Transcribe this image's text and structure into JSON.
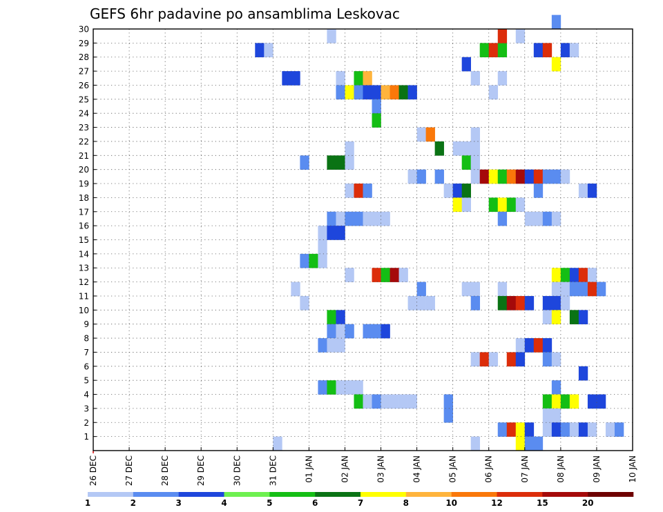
{
  "chart_data": {
    "type": "heatmap",
    "title": "GEFS 6hr padavine po ansamblima Leskovac",
    "xlabel": "",
    "ylabel": "",
    "x_ticks": [
      "26 DEC",
      "27 DEC",
      "28 DEC",
      "29 DEC",
      "30 DEC",
      "31 DEC",
      "01 JAN",
      "02 JAN",
      "03 JAN",
      "04 JAN",
      "05 JAN",
      "06 JAN",
      "07 JAN",
      "08 JAN",
      "09 JAN",
      "10 JAN"
    ],
    "y_ticks": [
      "1",
      "2",
      "3",
      "4",
      "5",
      "6",
      "7",
      "8",
      "9",
      "10",
      "11",
      "12",
      "13",
      "14",
      "15",
      "16",
      "17",
      "18",
      "19",
      "20",
      "21",
      "22",
      "23",
      "24",
      "25",
      "26",
      "27",
      "28",
      "29",
      "30"
    ],
    "xlim": [
      0,
      60
    ],
    "ylim": [
      0,
      30
    ],
    "grid": true,
    "legend": {
      "placement": "bottom",
      "levels": [
        "1",
        "2",
        "3",
        "4",
        "5",
        "6",
        "7",
        "8",
        "10",
        "12",
        "15",
        "20"
      ],
      "colors": [
        "#b4c8f5",
        "#5a8cf0",
        "#1e46dc",
        "#6ef050",
        "#14be14",
        "#0a7314",
        "#ffff00",
        "#ffb43c",
        "#fa780a",
        "#dc2d0a",
        "#a50a0a",
        "#6e0000"
      ]
    },
    "cells": [
      {
        "t": 18,
        "m": 28,
        "c": 3
      },
      {
        "t": 19,
        "m": 28,
        "c": 1
      },
      {
        "t": 21,
        "m": 26,
        "c": 3
      },
      {
        "t": 22,
        "m": 26,
        "c": 3
      },
      {
        "t": 26,
        "m": 29,
        "c": 1
      },
      {
        "t": 27,
        "m": 26,
        "c": 1
      },
      {
        "t": 41,
        "m": 27,
        "c": 3
      },
      {
        "t": 42,
        "m": 26,
        "c": 1
      },
      {
        "t": 43,
        "m": 28,
        "c": 5
      },
      {
        "t": 44,
        "m": 28,
        "c": 10
      },
      {
        "t": 45,
        "m": 28,
        "c": 5
      },
      {
        "t": 45,
        "m": 29,
        "c": 10
      },
      {
        "t": 47,
        "m": 29,
        "c": 1
      },
      {
        "t": 49,
        "m": 28,
        "c": 3
      },
      {
        "t": 50,
        "m": 28,
        "c": 10
      },
      {
        "t": 51,
        "m": 27,
        "c": 7
      },
      {
        "t": 52,
        "m": 28,
        "c": 3
      },
      {
        "t": 53,
        "m": 28,
        "c": 1
      },
      {
        "t": 51,
        "m": 30,
        "c": 2
      },
      {
        "t": 29,
        "m": 26,
        "c": 5
      },
      {
        "t": 30,
        "m": 26,
        "c": 8
      },
      {
        "t": 45,
        "m": 26,
        "c": 1
      },
      {
        "t": 27,
        "m": 25,
        "c": 2
      },
      {
        "t": 28,
        "m": 25,
        "c": 7
      },
      {
        "t": 29,
        "m": 25,
        "c": 2
      },
      {
        "t": 30,
        "m": 25,
        "c": 3
      },
      {
        "t": 31,
        "m": 25,
        "c": 3
      },
      {
        "t": 32,
        "m": 25,
        "c": 8
      },
      {
        "t": 33,
        "m": 25,
        "c": 9
      },
      {
        "t": 34,
        "m": 25,
        "c": 6
      },
      {
        "t": 35,
        "m": 25,
        "c": 3
      },
      {
        "t": 44,
        "m": 25,
        "c": 1
      },
      {
        "t": 31,
        "m": 24,
        "c": 2
      },
      {
        "t": 31,
        "m": 23,
        "c": 5
      },
      {
        "t": 36,
        "m": 22,
        "c": 1
      },
      {
        "t": 37,
        "m": 22,
        "c": 9
      },
      {
        "t": 42,
        "m": 22,
        "c": 1
      },
      {
        "t": 28,
        "m": 21,
        "c": 1
      },
      {
        "t": 38,
        "m": 21,
        "c": 6
      },
      {
        "t": 40,
        "m": 21,
        "c": 1
      },
      {
        "t": 41,
        "m": 21,
        "c": 1
      },
      {
        "t": 42,
        "m": 21,
        "c": 1
      },
      {
        "t": 23,
        "m": 20,
        "c": 2
      },
      {
        "t": 26,
        "m": 20,
        "c": 6
      },
      {
        "t": 27,
        "m": 20,
        "c": 6
      },
      {
        "t": 28,
        "m": 20,
        "c": 1
      },
      {
        "t": 41,
        "m": 20,
        "c": 5
      },
      {
        "t": 42,
        "m": 20,
        "c": 1
      },
      {
        "t": 35,
        "m": 19,
        "c": 1
      },
      {
        "t": 36,
        "m": 19,
        "c": 2
      },
      {
        "t": 38,
        "m": 19,
        "c": 2
      },
      {
        "t": 42,
        "m": 19,
        "c": 1
      },
      {
        "t": 43,
        "m": 19,
        "c": 11
      },
      {
        "t": 44,
        "m": 19,
        "c": 7
      },
      {
        "t": 45,
        "m": 19,
        "c": 5
      },
      {
        "t": 46,
        "m": 19,
        "c": 9
      },
      {
        "t": 47,
        "m": 19,
        "c": 11
      },
      {
        "t": 48,
        "m": 19,
        "c": 3
      },
      {
        "t": 49,
        "m": 19,
        "c": 10
      },
      {
        "t": 50,
        "m": 19,
        "c": 2
      },
      {
        "t": 51,
        "m": 19,
        "c": 2
      },
      {
        "t": 52,
        "m": 19,
        "c": 1
      },
      {
        "t": 28,
        "m": 18,
        "c": 1
      },
      {
        "t": 29,
        "m": 18,
        "c": 10
      },
      {
        "t": 30,
        "m": 18,
        "c": 2
      },
      {
        "t": 39,
        "m": 18,
        "c": 1
      },
      {
        "t": 40,
        "m": 18,
        "c": 3
      },
      {
        "t": 41,
        "m": 18,
        "c": 6
      },
      {
        "t": 49,
        "m": 18,
        "c": 2
      },
      {
        "t": 54,
        "m": 18,
        "c": 1
      },
      {
        "t": 55,
        "m": 18,
        "c": 3
      },
      {
        "t": 40,
        "m": 17,
        "c": 7
      },
      {
        "t": 41,
        "m": 17,
        "c": 1
      },
      {
        "t": 44,
        "m": 17,
        "c": 5
      },
      {
        "t": 45,
        "m": 17,
        "c": 7
      },
      {
        "t": 46,
        "m": 17,
        "c": 5
      },
      {
        "t": 47,
        "m": 17,
        "c": 1
      },
      {
        "t": 26,
        "m": 16,
        "c": 2
      },
      {
        "t": 27,
        "m": 16,
        "c": 1
      },
      {
        "t": 28,
        "m": 16,
        "c": 2
      },
      {
        "t": 29,
        "m": 16,
        "c": 2
      },
      {
        "t": 30,
        "m": 16,
        "c": 1
      },
      {
        "t": 31,
        "m": 16,
        "c": 1
      },
      {
        "t": 32,
        "m": 16,
        "c": 1
      },
      {
        "t": 45,
        "m": 16,
        "c": 2
      },
      {
        "t": 48,
        "m": 16,
        "c": 1
      },
      {
        "t": 49,
        "m": 16,
        "c": 1
      },
      {
        "t": 50,
        "m": 16,
        "c": 2
      },
      {
        "t": 51,
        "m": 16,
        "c": 1
      },
      {
        "t": 25,
        "m": 15,
        "c": 1
      },
      {
        "t": 26,
        "m": 15,
        "c": 3
      },
      {
        "t": 27,
        "m": 15,
        "c": 3
      },
      {
        "t": 25,
        "m": 14,
        "c": 1
      },
      {
        "t": 23,
        "m": 13,
        "c": 2
      },
      {
        "t": 24,
        "m": 13,
        "c": 5
      },
      {
        "t": 25,
        "m": 13,
        "c": 1
      },
      {
        "t": 28,
        "m": 12,
        "c": 1
      },
      {
        "t": 31,
        "m": 12,
        "c": 10
      },
      {
        "t": 32,
        "m": 12,
        "c": 5
      },
      {
        "t": 33,
        "m": 12,
        "c": 11
      },
      {
        "t": 34,
        "m": 12,
        "c": 1
      },
      {
        "t": 51,
        "m": 12,
        "c": 7
      },
      {
        "t": 52,
        "m": 12,
        "c": 5
      },
      {
        "t": 53,
        "m": 12,
        "c": 3
      },
      {
        "t": 54,
        "m": 12,
        "c": 10
      },
      {
        "t": 55,
        "m": 12,
        "c": 1
      },
      {
        "t": 22,
        "m": 11,
        "c": 1
      },
      {
        "t": 36,
        "m": 11,
        "c": 2
      },
      {
        "t": 41,
        "m": 11,
        "c": 1
      },
      {
        "t": 42,
        "m": 11,
        "c": 1
      },
      {
        "t": 45,
        "m": 11,
        "c": 1
      },
      {
        "t": 51,
        "m": 11,
        "c": 1
      },
      {
        "t": 52,
        "m": 11,
        "c": 1
      },
      {
        "t": 53,
        "m": 11,
        "c": 2
      },
      {
        "t": 54,
        "m": 11,
        "c": 2
      },
      {
        "t": 55,
        "m": 11,
        "c": 10
      },
      {
        "t": 56,
        "m": 11,
        "c": 2
      },
      {
        "t": 23,
        "m": 10,
        "c": 1
      },
      {
        "t": 35,
        "m": 10,
        "c": 1
      },
      {
        "t": 36,
        "m": 10,
        "c": 1
      },
      {
        "t": 37,
        "m": 10,
        "c": 1
      },
      {
        "t": 42,
        "m": 10,
        "c": 2
      },
      {
        "t": 45,
        "m": 10,
        "c": 6
      },
      {
        "t": 46,
        "m": 10,
        "c": 11
      },
      {
        "t": 47,
        "m": 10,
        "c": 10
      },
      {
        "t": 48,
        "m": 10,
        "c": 3
      },
      {
        "t": 50,
        "m": 10,
        "c": 3
      },
      {
        "t": 51,
        "m": 10,
        "c": 3
      },
      {
        "t": 52,
        "m": 10,
        "c": 1
      },
      {
        "t": 26,
        "m": 9,
        "c": 5
      },
      {
        "t": 27,
        "m": 9,
        "c": 3
      },
      {
        "t": 50,
        "m": 9,
        "c": 1
      },
      {
        "t": 51,
        "m": 9,
        "c": 7
      },
      {
        "t": 53,
        "m": 9,
        "c": 6
      },
      {
        "t": 54,
        "m": 9,
        "c": 3
      },
      {
        "t": 26,
        "m": 8,
        "c": 2
      },
      {
        "t": 27,
        "m": 8,
        "c": 1
      },
      {
        "t": 28,
        "m": 8,
        "c": 2
      },
      {
        "t": 30,
        "m": 8,
        "c": 2
      },
      {
        "t": 31,
        "m": 8,
        "c": 2
      },
      {
        "t": 32,
        "m": 8,
        "c": 3
      },
      {
        "t": 25,
        "m": 7,
        "c": 2
      },
      {
        "t": 26,
        "m": 7,
        "c": 1
      },
      {
        "t": 27,
        "m": 7,
        "c": 1
      },
      {
        "t": 47,
        "m": 7,
        "c": 1
      },
      {
        "t": 48,
        "m": 7,
        "c": 3
      },
      {
        "t": 49,
        "m": 7,
        "c": 10
      },
      {
        "t": 50,
        "m": 7,
        "c": 3
      },
      {
        "t": 42,
        "m": 6,
        "c": 1
      },
      {
        "t": 43,
        "m": 6,
        "c": 10
      },
      {
        "t": 44,
        "m": 6,
        "c": 1
      },
      {
        "t": 46,
        "m": 6,
        "c": 10
      },
      {
        "t": 47,
        "m": 6,
        "c": 3
      },
      {
        "t": 50,
        "m": 6,
        "c": 2
      },
      {
        "t": 51,
        "m": 6,
        "c": 1
      },
      {
        "t": 54,
        "m": 5,
        "c": 3
      },
      {
        "t": 25,
        "m": 4,
        "c": 2
      },
      {
        "t": 26,
        "m": 4,
        "c": 5
      },
      {
        "t": 27,
        "m": 4,
        "c": 1
      },
      {
        "t": 28,
        "m": 4,
        "c": 1
      },
      {
        "t": 29,
        "m": 4,
        "c": 1
      },
      {
        "t": 51,
        "m": 4,
        "c": 2
      },
      {
        "t": 29,
        "m": 3,
        "c": 5
      },
      {
        "t": 30,
        "m": 3,
        "c": 1
      },
      {
        "t": 31,
        "m": 3,
        "c": 2
      },
      {
        "t": 32,
        "m": 3,
        "c": 1
      },
      {
        "t": 33,
        "m": 3,
        "c": 1
      },
      {
        "t": 34,
        "m": 3,
        "c": 1
      },
      {
        "t": 35,
        "m": 3,
        "c": 1
      },
      {
        "t": 39,
        "m": 3,
        "c": 2
      },
      {
        "t": 50,
        "m": 3,
        "c": 5
      },
      {
        "t": 51,
        "m": 3,
        "c": 7
      },
      {
        "t": 52,
        "m": 3,
        "c": 5
      },
      {
        "t": 53,
        "m": 3,
        "c": 7
      },
      {
        "t": 55,
        "m": 3,
        "c": 3
      },
      {
        "t": 56,
        "m": 3,
        "c": 3
      },
      {
        "t": 39,
        "m": 2,
        "c": 2
      },
      {
        "t": 50,
        "m": 2,
        "c": 1
      },
      {
        "t": 51,
        "m": 2,
        "c": 1
      },
      {
        "t": 45,
        "m": 1,
        "c": 2
      },
      {
        "t": 46,
        "m": 1,
        "c": 10
      },
      {
        "t": 47,
        "m": 1,
        "c": 7
      },
      {
        "t": 48,
        "m": 1,
        "c": 3
      },
      {
        "t": 50,
        "m": 1,
        "c": 1
      },
      {
        "t": 51,
        "m": 1,
        "c": 3
      },
      {
        "t": 52,
        "m": 1,
        "c": 2
      },
      {
        "t": 53,
        "m": 1,
        "c": 1
      },
      {
        "t": 54,
        "m": 1,
        "c": 3
      },
      {
        "t": 55,
        "m": 1,
        "c": 1
      },
      {
        "t": 57,
        "m": 1,
        "c": 1
      },
      {
        "t": 58,
        "m": 1,
        "c": 2
      },
      {
        "t": 20,
        "m": 0,
        "c": 1
      },
      {
        "t": 42,
        "m": 0,
        "c": 1
      },
      {
        "t": 47,
        "m": 0,
        "c": 7
      },
      {
        "t": 48,
        "m": 0,
        "c": 2
      },
      {
        "t": 49,
        "m": 0,
        "c": 2
      }
    ]
  }
}
